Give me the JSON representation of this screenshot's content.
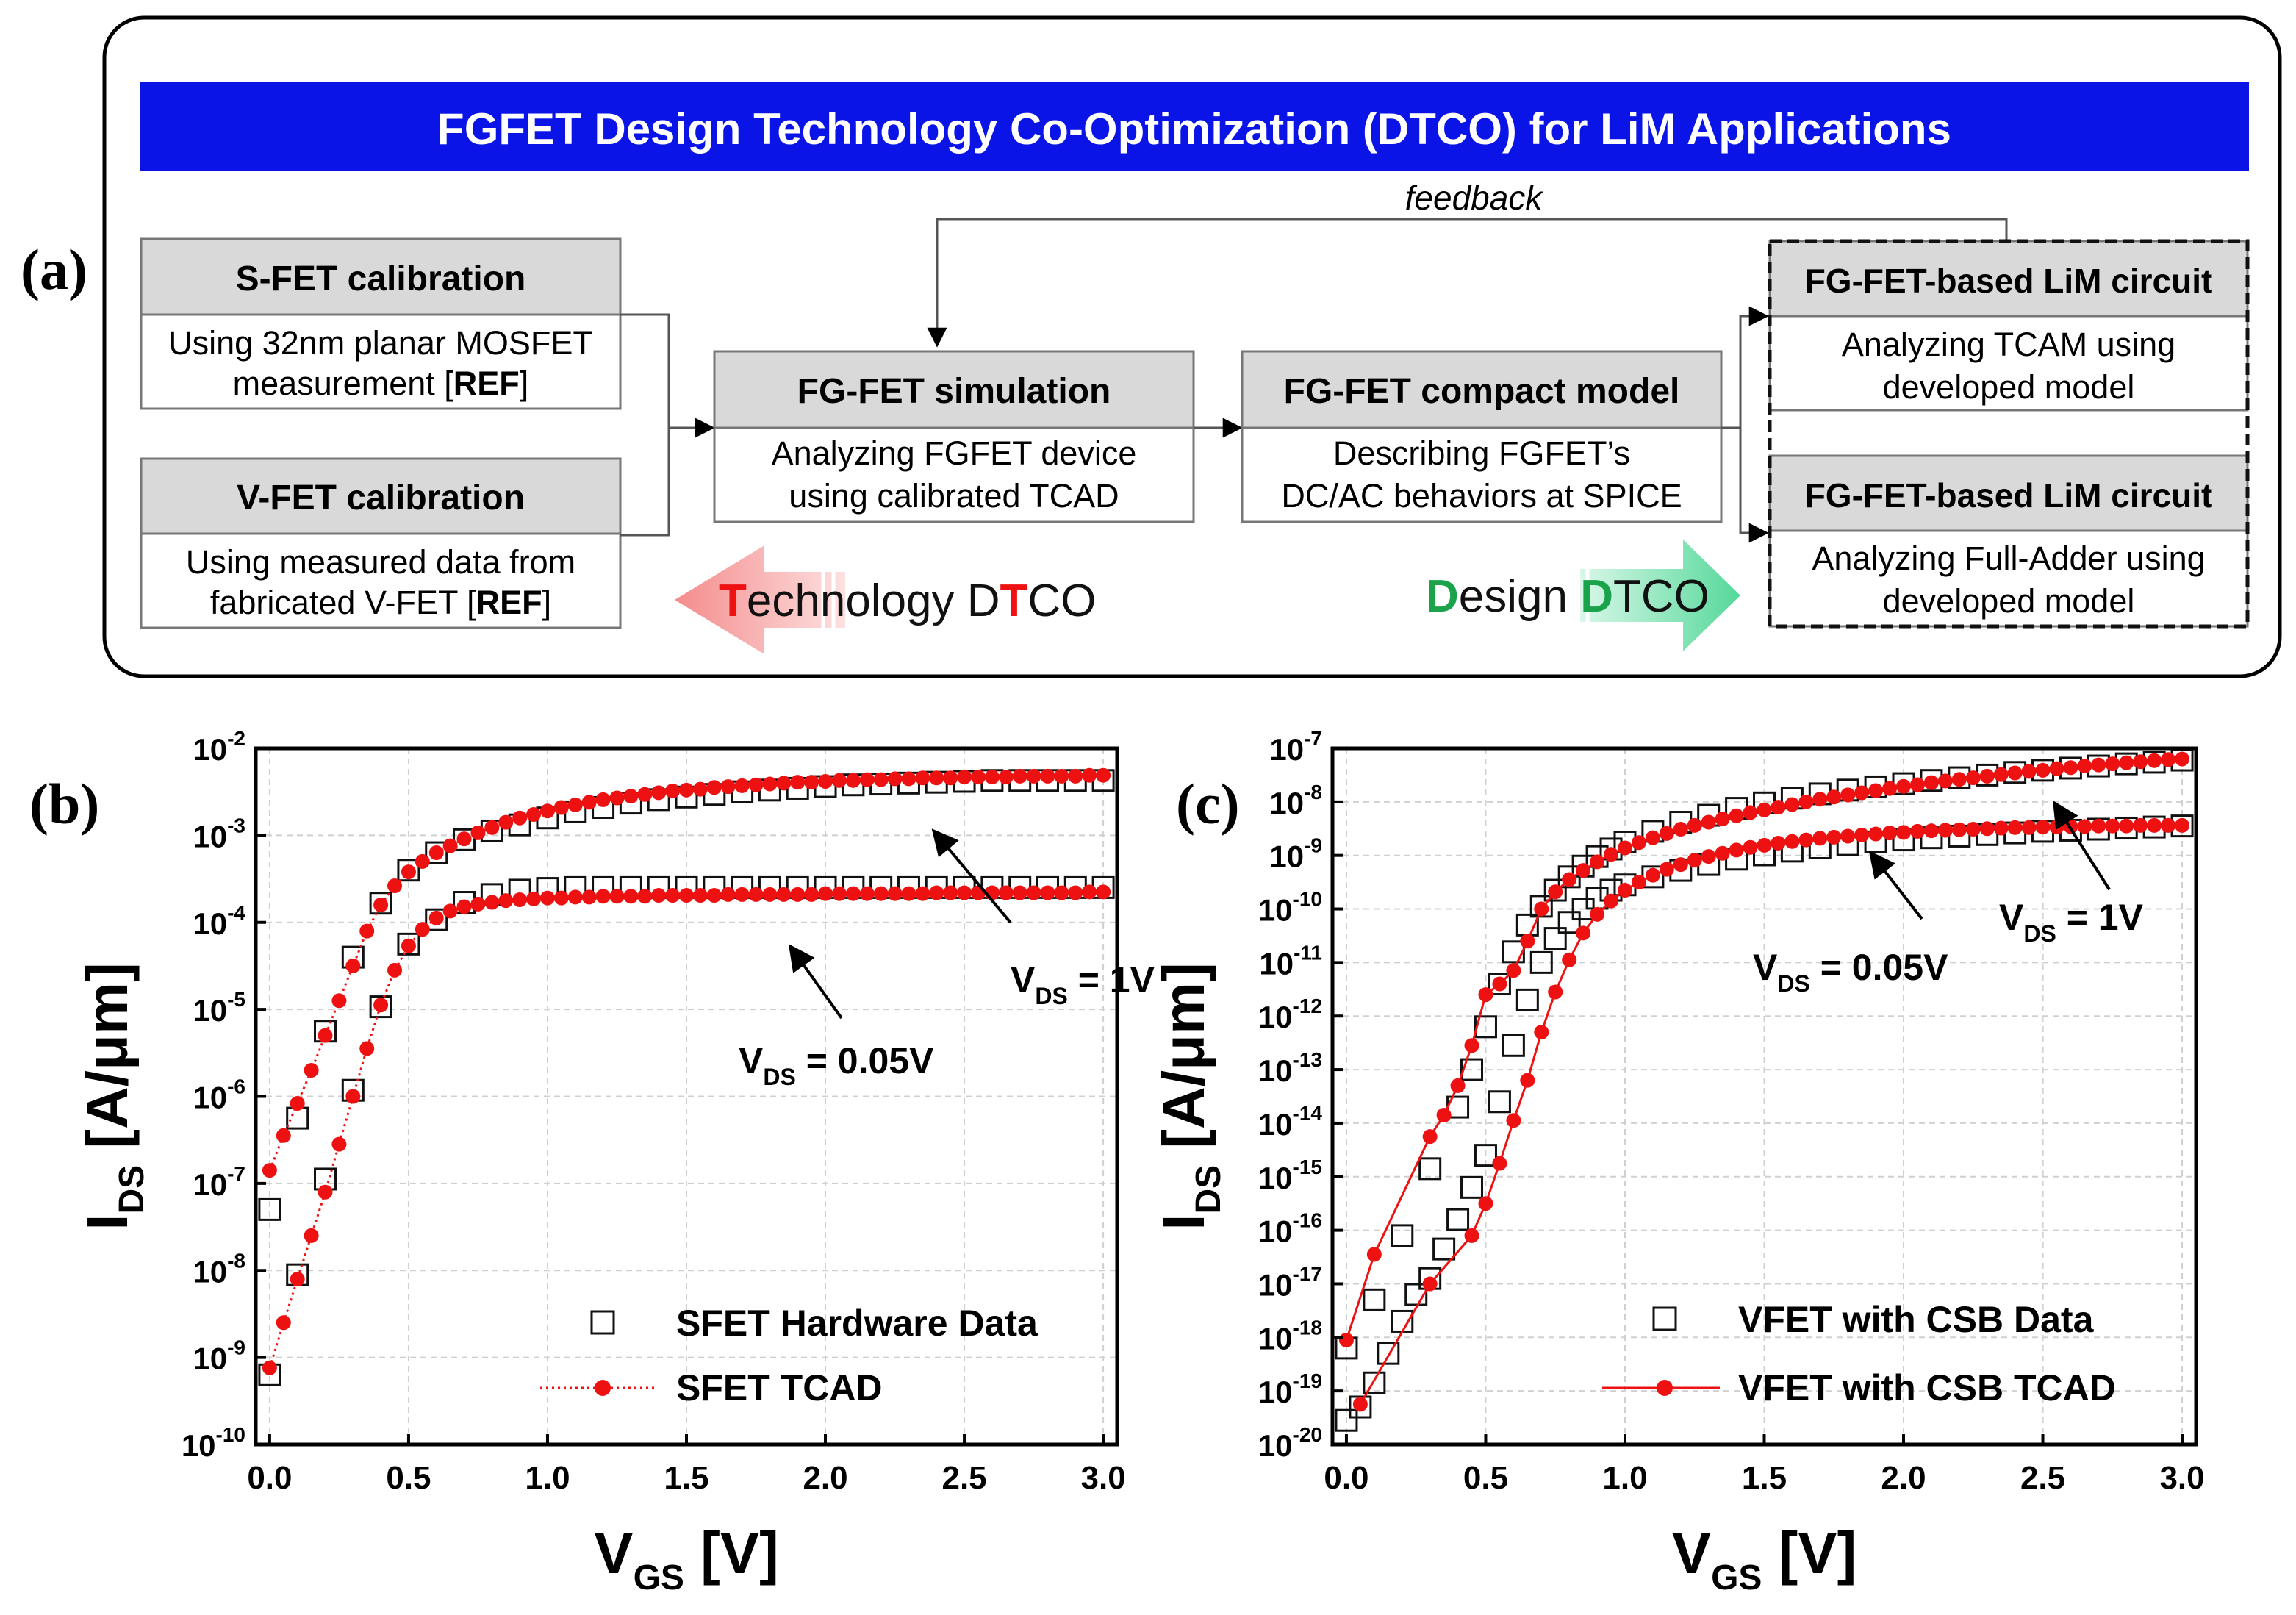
{
  "panel_a": {
    "label": "(a)",
    "title": "FGFET Design Technology Co-Optimization (DTCO) for LiM Applications",
    "feedback": "feedback",
    "sfet": {
      "title": "S-FET calibration",
      "line1": "Using 32nm planar MOSFET",
      "line2_pre": "measurement [",
      "ref": "REF",
      "line2_post": "]"
    },
    "vfet": {
      "title": "V-FET calibration",
      "line1": "Using measured data from",
      "line2_pre": "fabricated V-FET [",
      "ref": "REF",
      "line2_post": "]"
    },
    "sim": {
      "title": "FG-FET simulation",
      "line1": "Analyzing FGFET device",
      "line2": "using calibrated TCAD"
    },
    "compact": {
      "title": "FG-FET compact model",
      "line1": "Describing FGFET’s",
      "line2": "DC/AC behaviors at SPICE"
    },
    "lim1": {
      "title": "FG-FET-based LiM circuit",
      "line1": "Analyzing TCAM using",
      "line2": "developed model"
    },
    "lim2": {
      "title": "FG-FET-based LiM circuit",
      "line1": "Analyzing Full-Adder using",
      "line2": "developed model"
    },
    "tech_arrow": {
      "t1": "T",
      "t2": "echnology D",
      "t3": "T",
      "t4": "CO"
    },
    "design_arrow": {
      "d1": "D",
      "d2": "esign ",
      "d3": "D",
      "d4": "TCO"
    },
    "colors": {
      "title_bg": "#0a14e6",
      "header_bg": "#d9d9d9",
      "red": "#ee1111",
      "green": "#1aa34a",
      "red_arrow": "#f6a0a0",
      "green_arrow": "#7ee0b0"
    }
  },
  "chart_data": [
    {
      "id": "b",
      "label": "(b)",
      "type": "scatter",
      "xlabel": "V",
      "xlabel_sub": "GS",
      "xlabel_unit": " [V]",
      "ylabel": "I",
      "ylabel_sub": "DS",
      "ylabel_unit": " [A/μm]",
      "xlim": [
        -0.05,
        3.05
      ],
      "ylim_exp": [
        -10,
        -2
      ],
      "xticks": [
        "0.0",
        "0.5",
        "1.0",
        "1.5",
        "2.0",
        "2.5",
        "3.0"
      ],
      "yticks": [
        {
          "base": "10",
          "exp": "-10"
        },
        {
          "base": "10",
          "exp": "-9"
        },
        {
          "base": "10",
          "exp": "-8"
        },
        {
          "base": "10",
          "exp": "-7"
        },
        {
          "base": "10",
          "exp": "-6"
        },
        {
          "base": "10",
          "exp": "-5"
        },
        {
          "base": "10",
          "exp": "-4"
        },
        {
          "base": "10",
          "exp": "-3"
        },
        {
          "base": "10",
          "exp": "-2"
        }
      ],
      "legend": [
        {
          "name": "SFET Hardware Data",
          "marker": "square"
        },
        {
          "name": "SFET TCAD",
          "marker": "circle",
          "line": "dotted"
        }
      ],
      "annotations": [
        {
          "pre": "V",
          "sub": "DS",
          "post": " = 1V"
        },
        {
          "pre": "V",
          "sub": "DS",
          "post": " = 0.05V"
        }
      ],
      "series": [
        {
          "name": "SFET Hardware Data VDS=1V",
          "marker": "square",
          "x": [
            0.0,
            0.1,
            0.2,
            0.3,
            0.4,
            0.5,
            0.6,
            0.7,
            0.8,
            0.9,
            1.0,
            1.1,
            1.2,
            1.3,
            1.4,
            1.5,
            1.6,
            1.7,
            1.8,
            1.9,
            2.0,
            2.1,
            2.2,
            2.3,
            2.4,
            2.5,
            2.6,
            2.7,
            2.8,
            2.9,
            3.0
          ],
          "logy": [
            -7.3,
            -6.25,
            -5.25,
            -4.4,
            -3.78,
            -3.4,
            -3.2,
            -3.05,
            -2.95,
            -2.88,
            -2.8,
            -2.73,
            -2.68,
            -2.63,
            -2.59,
            -2.56,
            -2.53,
            -2.5,
            -2.48,
            -2.46,
            -2.44,
            -2.42,
            -2.41,
            -2.4,
            -2.39,
            -2.38,
            -2.37,
            -2.37,
            -2.37,
            -2.37,
            -2.37
          ]
        },
        {
          "name": "SFET Hardware Data VDS=0.05V",
          "marker": "square",
          "x": [
            0.0,
            0.1,
            0.2,
            0.3,
            0.4,
            0.5,
            0.6,
            0.7,
            0.8,
            0.9,
            1.0,
            1.1,
            1.2,
            1.3,
            1.4,
            1.5,
            1.6,
            1.7,
            1.8,
            1.9,
            2.0,
            2.1,
            2.2,
            2.3,
            2.4,
            2.5,
            2.6,
            2.7,
            2.8,
            2.9,
            3.0
          ],
          "logy": [
            -9.2,
            -8.05,
            -6.95,
            -5.93,
            -4.97,
            -4.25,
            -3.97,
            -3.77,
            -3.68,
            -3.63,
            -3.61,
            -3.6,
            -3.6,
            -3.6,
            -3.6,
            -3.6,
            -3.6,
            -3.6,
            -3.6,
            -3.6,
            -3.6,
            -3.6,
            -3.6,
            -3.6,
            -3.6,
            -3.6,
            -3.6,
            -3.6,
            -3.6,
            -3.6,
            -3.6
          ]
        },
        {
          "name": "SFET TCAD VDS=1V",
          "marker": "circle",
          "line": "dotted",
          "x": [
            0.0,
            0.05,
            0.1,
            0.15,
            0.2,
            0.25,
            0.3,
            0.35,
            0.4,
            0.45,
            0.5,
            0.55,
            0.6,
            0.65,
            0.7,
            0.75,
            0.8,
            0.85,
            0.9,
            0.95,
            1.0,
            1.05,
            1.1,
            1.15,
            1.2,
            1.25,
            1.3,
            1.35,
            1.4,
            1.45,
            1.5,
            1.55,
            1.6,
            1.65,
            1.7,
            1.75,
            1.8,
            1.85,
            1.9,
            1.95,
            2.0,
            2.05,
            2.1,
            2.15,
            2.2,
            2.25,
            2.3,
            2.35,
            2.4,
            2.45,
            2.5,
            2.55,
            2.6,
            2.65,
            2.7,
            2.75,
            2.8,
            2.85,
            2.9,
            2.95,
            3.0
          ],
          "logy": [
            -6.85,
            -6.45,
            -6.08,
            -5.7,
            -5.3,
            -4.9,
            -4.5,
            -4.1,
            -3.8,
            -3.58,
            -3.42,
            -3.3,
            -3.2,
            -3.12,
            -3.04,
            -2.97,
            -2.91,
            -2.85,
            -2.8,
            -2.76,
            -2.72,
            -2.68,
            -2.65,
            -2.62,
            -2.59,
            -2.57,
            -2.55,
            -2.53,
            -2.51,
            -2.49,
            -2.48,
            -2.47,
            -2.45,
            -2.44,
            -2.43,
            -2.42,
            -2.41,
            -2.4,
            -2.39,
            -2.39,
            -2.38,
            -2.37,
            -2.37,
            -2.36,
            -2.36,
            -2.35,
            -2.35,
            -2.34,
            -2.34,
            -2.34,
            -2.33,
            -2.33,
            -2.33,
            -2.33,
            -2.32,
            -2.32,
            -2.32,
            -2.32,
            -2.32,
            -2.31,
            -2.31
          ]
        },
        {
          "name": "SFET TCAD VDS=0.05V",
          "marker": "circle",
          "line": "dotted",
          "x": [
            0.0,
            0.05,
            0.1,
            0.15,
            0.2,
            0.25,
            0.3,
            0.35,
            0.4,
            0.45,
            0.5,
            0.55,
            0.6,
            0.65,
            0.7,
            0.75,
            0.8,
            0.85,
            0.9,
            0.95,
            1.0,
            1.05,
            1.1,
            1.15,
            1.2,
            1.25,
            1.3,
            1.35,
            1.4,
            1.45,
            1.5,
            1.55,
            1.6,
            1.65,
            1.7,
            1.75,
            1.8,
            1.85,
            1.9,
            1.95,
            2.0,
            2.05,
            2.1,
            2.15,
            2.2,
            2.25,
            2.3,
            2.35,
            2.4,
            2.45,
            2.5,
            2.55,
            2.6,
            2.65,
            2.7,
            2.75,
            2.8,
            2.85,
            2.9,
            2.95,
            3.0
          ],
          "logy": [
            -9.12,
            -8.6,
            -8.1,
            -7.6,
            -7.1,
            -6.55,
            -6.0,
            -5.45,
            -4.95,
            -4.55,
            -4.27,
            -4.08,
            -3.95,
            -3.87,
            -3.82,
            -3.79,
            -3.77,
            -3.75,
            -3.74,
            -3.73,
            -3.72,
            -3.72,
            -3.71,
            -3.71,
            -3.7,
            -3.7,
            -3.7,
            -3.7,
            -3.69,
            -3.69,
            -3.69,
            -3.69,
            -3.69,
            -3.68,
            -3.68,
            -3.68,
            -3.68,
            -3.68,
            -3.68,
            -3.68,
            -3.67,
            -3.67,
            -3.67,
            -3.67,
            -3.67,
            -3.67,
            -3.67,
            -3.67,
            -3.66,
            -3.66,
            -3.66,
            -3.66,
            -3.66,
            -3.66,
            -3.66,
            -3.66,
            -3.66,
            -3.66,
            -3.66,
            -3.65,
            -3.65
          ]
        }
      ]
    },
    {
      "id": "c",
      "label": "(c)",
      "type": "scatter",
      "xlabel": "V",
      "xlabel_sub": "GS",
      "xlabel_unit": " [V]",
      "ylabel": "I",
      "ylabel_sub": "DS",
      "ylabel_unit": " [A/μm]",
      "xlim": [
        -0.05,
        3.05
      ],
      "ylim_exp": [
        -20,
        -7
      ],
      "xticks": [
        "0.0",
        "0.5",
        "1.0",
        "1.5",
        "2.0",
        "2.5",
        "3.0"
      ],
      "yticks": [
        {
          "base": "10",
          "exp": "-20"
        },
        {
          "base": "10",
          "exp": "-19"
        },
        {
          "base": "10",
          "exp": "-18"
        },
        {
          "base": "10",
          "exp": "-17"
        },
        {
          "base": "10",
          "exp": "-16"
        },
        {
          "base": "10",
          "exp": "-15"
        },
        {
          "base": "10",
          "exp": "-14"
        },
        {
          "base": "10",
          "exp": "-13"
        },
        {
          "base": "10",
          "exp": "-12"
        },
        {
          "base": "10",
          "exp": "-11"
        },
        {
          "base": "10",
          "exp": "-10"
        },
        {
          "base": "10",
          "exp": "-9"
        },
        {
          "base": "10",
          "exp": "-8"
        },
        {
          "base": "10",
          "exp": "-7"
        }
      ],
      "legend": [
        {
          "name": "VFET with CSB Data",
          "marker": "square"
        },
        {
          "name": "VFET with CSB TCAD",
          "marker": "circle",
          "line": "solid"
        }
      ],
      "annotations": [
        {
          "pre": "V",
          "sub": "DS",
          "post": " = 1V"
        },
        {
          "pre": "V",
          "sub": "DS",
          "post": " = 0.05V"
        }
      ],
      "series": [
        {
          "name": "VFET Data VDS=1V",
          "marker": "square",
          "x": [
            0.0,
            0.1,
            0.2,
            0.3,
            0.4,
            0.45,
            0.5,
            0.55,
            0.6,
            0.65,
            0.7,
            0.75,
            0.8,
            0.85,
            0.9,
            0.95,
            1.0,
            1.1,
            1.2,
            1.3,
            1.4,
            1.5,
            1.6,
            1.7,
            1.8,
            1.9,
            2.0,
            2.1,
            2.2,
            2.3,
            2.4,
            2.5,
            2.6,
            2.7,
            2.8,
            2.9,
            3.0
          ],
          "logy": [
            -18.2,
            -17.3,
            -16.1,
            -14.85,
            -13.7,
            -13.0,
            -12.2,
            -11.4,
            -10.8,
            -10.3,
            -9.95,
            -9.65,
            -9.4,
            -9.2,
            -9.02,
            -8.88,
            -8.75,
            -8.55,
            -8.38,
            -8.25,
            -8.12,
            -8.02,
            -7.93,
            -7.85,
            -7.78,
            -7.72,
            -7.66,
            -7.6,
            -7.55,
            -7.5,
            -7.45,
            -7.41,
            -7.37,
            -7.33,
            -7.29,
            -7.26,
            -7.22
          ]
        },
        {
          "name": "VFET Data VDS=0.05V",
          "marker": "square",
          "x": [
            0.0,
            0.05,
            0.1,
            0.15,
            0.2,
            0.25,
            0.3,
            0.35,
            0.4,
            0.45,
            0.5,
            0.55,
            0.6,
            0.65,
            0.7,
            0.75,
            0.8,
            0.85,
            0.9,
            0.95,
            1.0,
            1.1,
            1.2,
            1.3,
            1.4,
            1.5,
            1.6,
            1.7,
            1.8,
            1.9,
            2.0,
            2.1,
            2.2,
            2.3,
            2.4,
            2.5,
            2.6,
            2.7,
            2.8,
            2.9,
            3.0
          ],
          "logy": [
            -19.55,
            -19.3,
            -18.85,
            -18.3,
            -17.7,
            -17.2,
            -16.9,
            -16.35,
            -15.8,
            -15.2,
            -14.6,
            -13.6,
            -12.55,
            -11.7,
            -11.0,
            -10.55,
            -10.25,
            -10.0,
            -9.8,
            -9.65,
            -9.55,
            -9.4,
            -9.28,
            -9.17,
            -9.07,
            -8.99,
            -8.92,
            -8.86,
            -8.8,
            -8.75,
            -8.71,
            -8.67,
            -8.64,
            -8.61,
            -8.58,
            -8.55,
            -8.53,
            -8.51,
            -8.49,
            -8.47,
            -8.45
          ]
        },
        {
          "name": "VFET TCAD VDS=1V",
          "marker": "circle",
          "line": "solid",
          "x": [
            0.0,
            0.1,
            0.3,
            0.35,
            0.4,
            0.45,
            0.5,
            0.55,
            0.6,
            0.65,
            0.7,
            0.75,
            0.8,
            0.85,
            0.9,
            0.95,
            1.0,
            1.05,
            1.1,
            1.15,
            1.2,
            1.25,
            1.3,
            1.35,
            1.4,
            1.45,
            1.5,
            1.55,
            1.6,
            1.65,
            1.7,
            1.75,
            1.8,
            1.85,
            1.9,
            1.95,
            2.0,
            2.05,
            2.1,
            2.15,
            2.2,
            2.25,
            2.3,
            2.35,
            2.4,
            2.45,
            2.5,
            2.55,
            2.6,
            2.65,
            2.7,
            2.75,
            2.8,
            2.85,
            2.9,
            2.95,
            3.0
          ],
          "logy": [
            -18.05,
            -16.45,
            -14.25,
            -13.85,
            -13.3,
            -12.55,
            -11.6,
            -11.4,
            -11.15,
            -10.6,
            -10.0,
            -9.68,
            -9.45,
            -9.28,
            -9.12,
            -8.98,
            -8.86,
            -8.76,
            -8.67,
            -8.59,
            -8.51,
            -8.44,
            -8.38,
            -8.32,
            -8.26,
            -8.2,
            -8.15,
            -8.1,
            -8.05,
            -8.0,
            -7.95,
            -7.91,
            -7.87,
            -7.83,
            -7.79,
            -7.75,
            -7.71,
            -7.68,
            -7.64,
            -7.61,
            -7.58,
            -7.55,
            -7.52,
            -7.49,
            -7.46,
            -7.43,
            -7.41,
            -7.38,
            -7.36,
            -7.33,
            -7.31,
            -7.29,
            -7.27,
            -7.25,
            -7.23,
            -7.21,
            -7.2
          ]
        },
        {
          "name": "VFET TCAD VDS=0.05V",
          "marker": "circle",
          "line": "solid",
          "x": [
            0.05,
            0.3,
            0.45,
            0.5,
            0.55,
            0.6,
            0.65,
            0.7,
            0.75,
            0.8,
            0.85,
            0.9,
            0.95,
            1.0,
            1.05,
            1.1,
            1.15,
            1.2,
            1.25,
            1.3,
            1.35,
            1.4,
            1.45,
            1.5,
            1.55,
            1.6,
            1.65,
            1.7,
            1.75,
            1.8,
            1.85,
            1.9,
            1.95,
            2.0,
            2.05,
            2.1,
            2.15,
            2.2,
            2.25,
            2.3,
            2.35,
            2.4,
            2.45,
            2.5,
            2.55,
            2.6,
            2.65,
            2.7,
            2.75,
            2.8,
            2.85,
            2.9,
            2.95,
            3.0
          ],
          "logy": [
            -19.25,
            -17.0,
            -16.1,
            -15.5,
            -14.75,
            -13.95,
            -13.2,
            -12.3,
            -11.55,
            -10.95,
            -10.45,
            -10.1,
            -9.85,
            -9.65,
            -9.5,
            -9.37,
            -9.26,
            -9.17,
            -9.09,
            -9.02,
            -8.96,
            -8.9,
            -8.85,
            -8.81,
            -8.77,
            -8.74,
            -8.71,
            -8.68,
            -8.66,
            -8.64,
            -8.62,
            -8.6,
            -8.58,
            -8.57,
            -8.55,
            -8.54,
            -8.53,
            -8.52,
            -8.51,
            -8.5,
            -8.49,
            -8.48,
            -8.48,
            -8.47,
            -8.47,
            -8.46,
            -8.46,
            -8.45,
            -8.45,
            -8.45,
            -8.44,
            -8.44,
            -8.44,
            -8.44
          ]
        }
      ]
    }
  ]
}
